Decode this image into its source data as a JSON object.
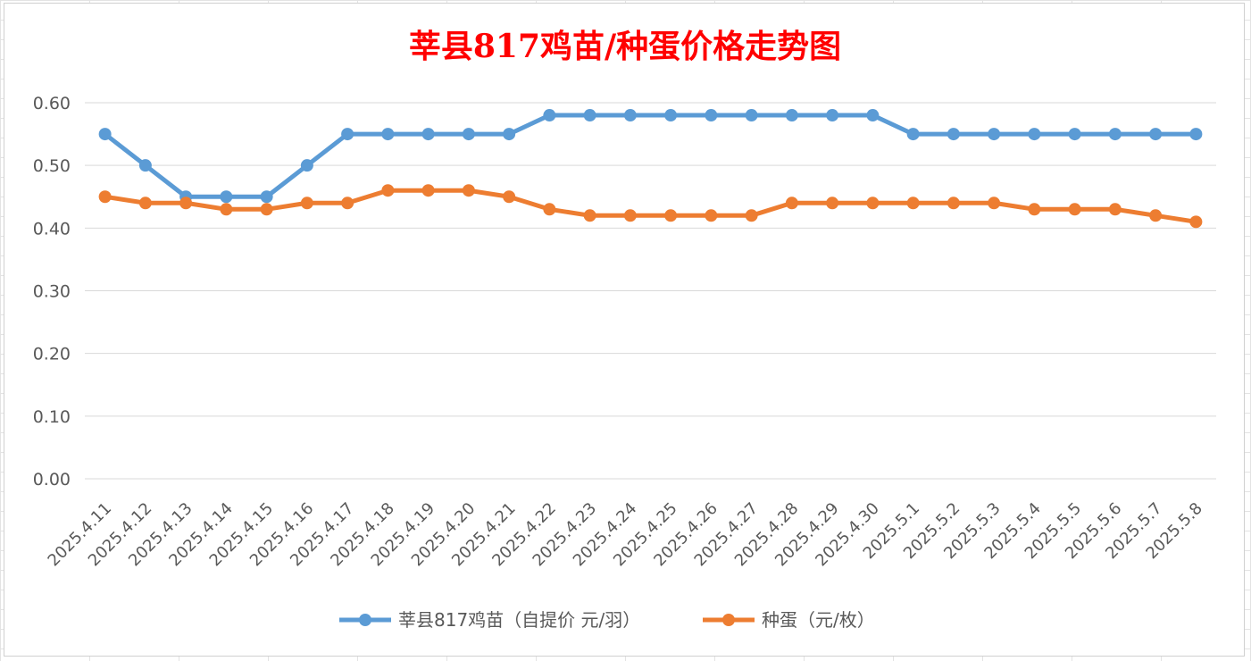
{
  "chart_data": {
    "type": "line",
    "title": "莘县817鸡苗/种蛋价格走势图",
    "xlabel": "",
    "ylabel": "",
    "ylim": [
      0,
      0.6
    ],
    "yticks": [
      "0.00",
      "0.10",
      "0.20",
      "0.30",
      "0.40",
      "0.50",
      "0.60"
    ],
    "grid": true,
    "legend_position": "bottom",
    "categories": [
      "2025.4.11",
      "2025.4.12",
      "2025.4.13",
      "2025.4.14",
      "2025.4.15",
      "2025.4.16",
      "2025.4.17",
      "2025.4.18",
      "2025.4.19",
      "2025.4.20",
      "2025.4.21",
      "2025.4.22",
      "2025.4.23",
      "2025.4.24",
      "2025.4.25",
      "2025.4.26",
      "2025.4.27",
      "2025.4.28",
      "2025.4.29",
      "2025.4.30",
      "2025.5.1",
      "2025.5.2",
      "2025.5.3",
      "2025.5.4",
      "2025.5.5",
      "2025.5.6",
      "2025.5.7",
      "2025.5.8"
    ],
    "series": [
      {
        "name": "莘县817鸡苗（自提价 元/羽）",
        "color": "#5b9bd5",
        "values": [
          0.55,
          0.5,
          0.45,
          0.45,
          0.45,
          0.5,
          0.55,
          0.55,
          0.55,
          0.55,
          0.55,
          0.58,
          0.58,
          0.58,
          0.58,
          0.58,
          0.58,
          0.58,
          0.58,
          0.58,
          0.55,
          0.55,
          0.55,
          0.55,
          0.55,
          0.55,
          0.55,
          0.55
        ]
      },
      {
        "name": "种蛋（元/枚）",
        "color": "#ed7d31",
        "values": [
          0.45,
          0.44,
          0.44,
          0.43,
          0.43,
          0.44,
          0.44,
          0.46,
          0.46,
          0.46,
          0.45,
          0.43,
          0.42,
          0.42,
          0.42,
          0.42,
          0.42,
          0.44,
          0.44,
          0.44,
          0.44,
          0.44,
          0.44,
          0.43,
          0.43,
          0.43,
          0.42,
          0.41
        ]
      }
    ]
  }
}
